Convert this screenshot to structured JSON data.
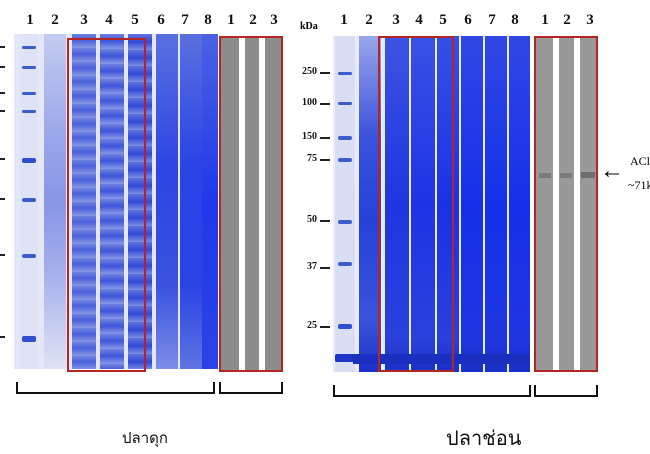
{
  "left_panel": {
    "lane_numbers": [
      "1",
      "2",
      "3",
      "4",
      "5",
      "6",
      "7",
      "8"
    ],
    "wb_lane_numbers": [
      "1",
      "2",
      "3"
    ],
    "caption": "ปลาดุก"
  },
  "right_panel": {
    "unit_label": "kDa",
    "mw_markers": [
      "250",
      "100",
      "150",
      "75",
      "50",
      "37",
      "25"
    ],
    "lane_numbers": [
      "1",
      "2",
      "3",
      "4",
      "5",
      "6",
      "7",
      "8"
    ],
    "wb_lane_numbers": [
      "1",
      "2",
      "3"
    ],
    "caption": "ปลาช่อน",
    "annotation_line1": "ACl",
    "annotation_line2": "~71k",
    "arrow_glyph": "←"
  },
  "colors": {
    "gel_blue": "#2a3fd8",
    "gel_light": "#c9cff0",
    "highlight_box": "#b52525",
    "western_blot_gray": "#8c8c8c"
  }
}
